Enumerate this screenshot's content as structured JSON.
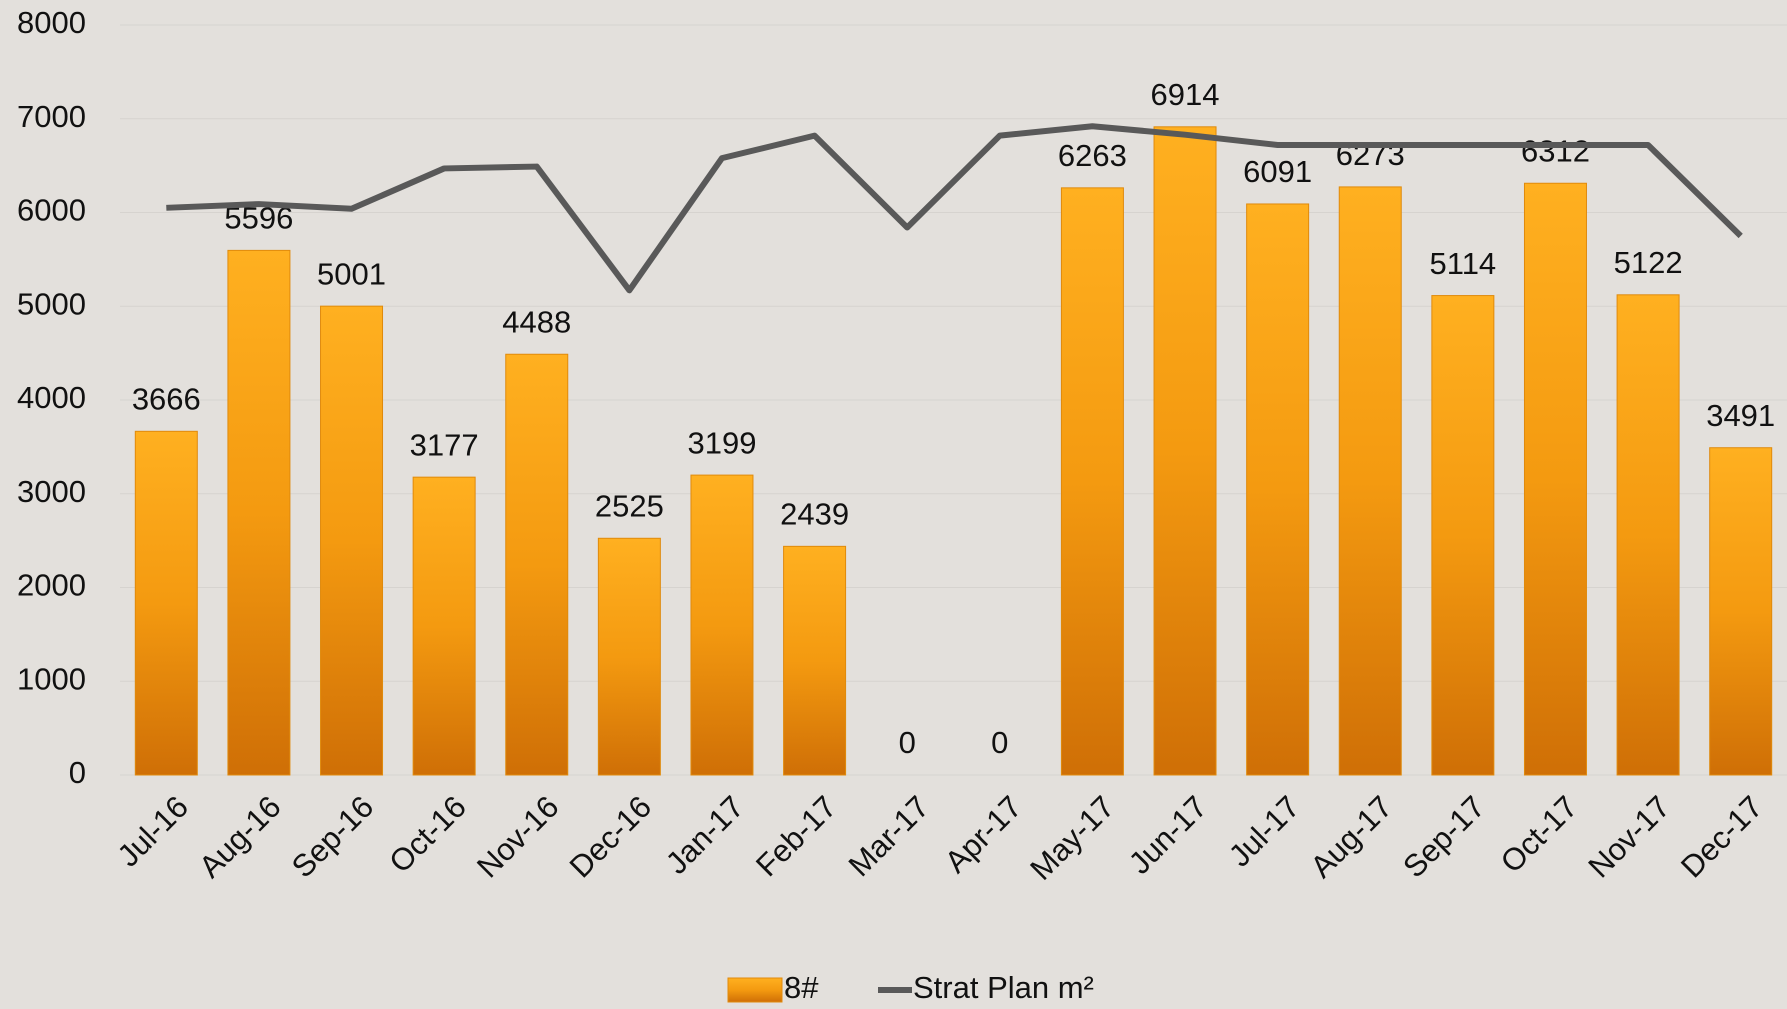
{
  "chart_data": {
    "type": "bar",
    "categories": [
      "Jul-16",
      "Aug-16",
      "Sep-16",
      "Oct-16",
      "Nov-16",
      "Dec-16",
      "Jan-17",
      "Feb-17",
      "Mar-17",
      "Apr-17",
      "May-17",
      "Jun-17",
      "Jul-17",
      "Aug-17",
      "Sep-17",
      "Oct-17",
      "Nov-17",
      "Dec-17"
    ],
    "series": [
      {
        "name": "8#",
        "type": "bar",
        "color": "#f39c12",
        "values": [
          3666,
          5596,
          5001,
          3177,
          4488,
          2525,
          3199,
          2439,
          0,
          0,
          6263,
          6914,
          6091,
          6273,
          5114,
          6312,
          5122,
          3491
        ]
      },
      {
        "name": "Strat Plan m²",
        "type": "line",
        "color": "#595959",
        "values": [
          6050,
          6090,
          6040,
          6470,
          6490,
          5170,
          6580,
          6820,
          5840,
          6820,
          6920,
          6830,
          6720,
          6720,
          6720,
          6720,
          6720,
          5750
        ]
      }
    ],
    "ylim": [
      0,
      8000
    ],
    "yticks": [
      0,
      1000,
      2000,
      3000,
      4000,
      5000,
      6000,
      7000,
      8000
    ],
    "grid": true,
    "legend": "bottom"
  }
}
